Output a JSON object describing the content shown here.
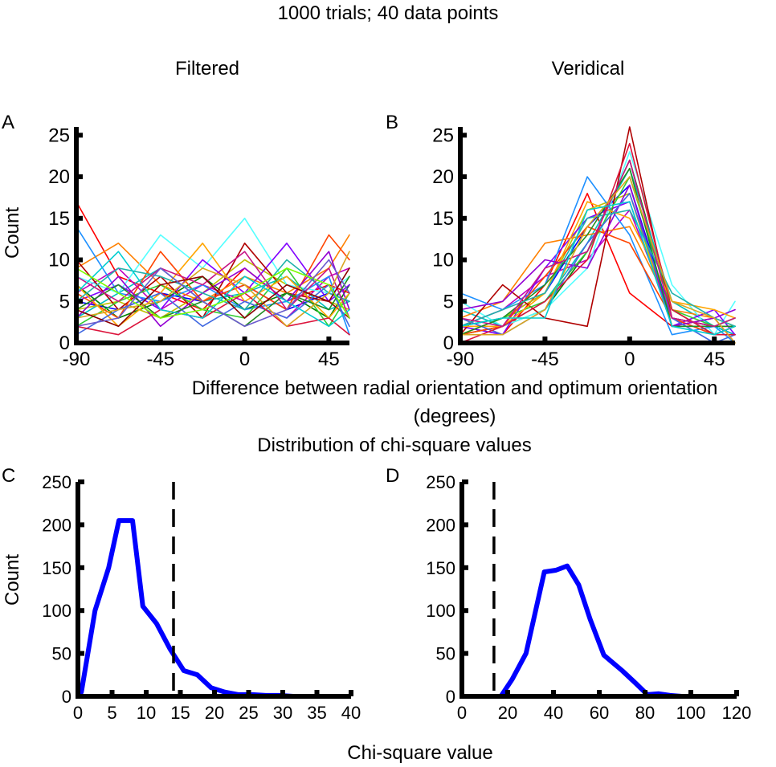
{
  "figure": {
    "main_title": "1000 trials; 40 data points",
    "section_a_xlabel": "Difference between radial orientation and optimum orientation",
    "section_a_xlabel_units": "(degrees)",
    "section_b_title": "Distribution of chi-square values",
    "section_b_xlabel": "Chi-square value"
  },
  "chart_data": [
    {
      "id": "A",
      "type": "line",
      "panel_letter": "A",
      "title": "Filtered",
      "ylabel": "Count",
      "xlabel": "",
      "x": [
        -90,
        -67.5,
        -45,
        -22.5,
        0,
        22.5,
        45,
        56
      ],
      "xticks": [
        -90,
        -45,
        0,
        45
      ],
      "yticks": [
        0,
        5,
        10,
        15,
        20,
        25
      ],
      "xlim": [
        -90,
        56
      ],
      "ylim": [
        0,
        26
      ],
      "grid": false,
      "series": [
        {
          "color": "#0000ff",
          "values": [
            5,
            4,
            6,
            5,
            7,
            4,
            6,
            5
          ]
        },
        {
          "color": "#008000",
          "values": [
            7,
            3,
            5,
            8,
            4,
            6,
            3,
            7
          ]
        },
        {
          "color": "#ff0000",
          "values": [
            17,
            8,
            6,
            4,
            9,
            5,
            7,
            6
          ]
        },
        {
          "color": "#00bfbf",
          "values": [
            3,
            6,
            9,
            5,
            6,
            8,
            4,
            5
          ]
        },
        {
          "color": "#bf00bf",
          "values": [
            6,
            9,
            4,
            7,
            5,
            3,
            8,
            9
          ]
        },
        {
          "color": "#bfbf00",
          "values": [
            4,
            5,
            3,
            6,
            10,
            7,
            5,
            4
          ]
        },
        {
          "color": "#ff8000",
          "values": [
            9,
            12,
            7,
            5,
            8,
            6,
            9,
            13
          ]
        },
        {
          "color": "#55ffff",
          "values": [
            8,
            6,
            13,
            9,
            15,
            7,
            6,
            8
          ]
        },
        {
          "color": "#8000ff",
          "values": [
            5,
            7,
            4,
            10,
            6,
            12,
            5,
            7
          ]
        },
        {
          "color": "#b00000",
          "values": [
            10,
            4,
            8,
            3,
            12,
            6,
            5,
            3
          ]
        },
        {
          "color": "#1e90ff",
          "values": [
            14,
            6,
            5,
            7,
            4,
            5,
            8,
            1
          ]
        },
        {
          "color": "#32cd32",
          "values": [
            2,
            5,
            7,
            4,
            3,
            9,
            2,
            6
          ]
        },
        {
          "color": "#ff4500",
          "values": [
            6,
            3,
            11,
            5,
            7,
            4,
            13,
            10
          ]
        },
        {
          "color": "#9400d3",
          "values": [
            3,
            8,
            2,
            6,
            9,
            5,
            11,
            4
          ]
        },
        {
          "color": "#ffa500",
          "values": [
            7,
            2,
            6,
            12,
            5,
            8,
            3,
            6
          ]
        },
        {
          "color": "#4169e1",
          "values": [
            1,
            4,
            6,
            2,
            5,
            3,
            7,
            2
          ]
        },
        {
          "color": "#228b22",
          "values": [
            4,
            7,
            3,
            5,
            2,
            6,
            4,
            8
          ]
        },
        {
          "color": "#dc143c",
          "values": [
            2,
            1,
            4,
            3,
            6,
            2,
            3,
            1
          ]
        },
        {
          "color": "#20b2aa",
          "values": [
            5,
            9,
            8,
            6,
            4,
            10,
            6,
            5
          ]
        },
        {
          "color": "#c71585",
          "values": [
            8,
            5,
            9,
            7,
            11,
            4,
            9,
            3
          ]
        },
        {
          "color": "#daa520",
          "values": [
            3,
            4,
            5,
            9,
            7,
            2,
            6,
            11
          ]
        },
        {
          "color": "#00ced1",
          "values": [
            6,
            11,
            4,
            3,
            8,
            5,
            2,
            4
          ]
        },
        {
          "color": "#8b0000",
          "values": [
            4,
            2,
            7,
            8,
            3,
            7,
            5,
            9
          ]
        },
        {
          "color": "#7cfc00",
          "values": [
            9,
            6,
            3,
            4,
            6,
            9,
            7,
            3
          ]
        },
        {
          "color": "#6a5acd",
          "values": [
            2,
            3,
            9,
            5,
            2,
            4,
            10,
            6
          ]
        }
      ]
    },
    {
      "id": "B",
      "type": "line",
      "panel_letter": "B",
      "title": "Veridical",
      "ylabel": "",
      "xlabel": "",
      "x": [
        -90,
        -67.5,
        -45,
        -22.5,
        0,
        22.5,
        45,
        56
      ],
      "xticks": [
        -90,
        -45,
        0,
        45
      ],
      "yticks": [
        0,
        5,
        10,
        15,
        20,
        25
      ],
      "xlim": [
        -90,
        56
      ],
      "ylim": [
        0,
        26
      ],
      "grid": false,
      "series": [
        {
          "color": "#0000ff",
          "values": [
            2,
            3,
            6,
            14,
            19,
            3,
            2,
            1
          ]
        },
        {
          "color": "#008000",
          "values": [
            1,
            2,
            4,
            11,
            22,
            4,
            1,
            2
          ]
        },
        {
          "color": "#ff0000",
          "values": [
            3,
            1,
            7,
            18,
            6,
            2,
            3,
            0
          ]
        },
        {
          "color": "#00bfbf",
          "values": [
            4,
            2,
            5,
            12,
            21,
            5,
            2,
            1
          ]
        },
        {
          "color": "#bf00bf",
          "values": [
            2,
            4,
            8,
            10,
            16,
            3,
            1,
            2
          ]
        },
        {
          "color": "#bfbf00",
          "values": [
            1,
            3,
            6,
            16,
            18,
            2,
            2,
            3
          ]
        },
        {
          "color": "#ff8000",
          "values": [
            3,
            5,
            12,
            13,
            14,
            4,
            3,
            2
          ]
        },
        {
          "color": "#55ffff",
          "values": [
            5,
            2,
            4,
            9,
            23,
            7,
            1,
            5
          ]
        },
        {
          "color": "#8000ff",
          "values": [
            2,
            1,
            9,
            15,
            17,
            2,
            4,
            1
          ]
        },
        {
          "color": "#b00000",
          "values": [
            1,
            7,
            3,
            2,
            26,
            3,
            2,
            2
          ]
        },
        {
          "color": "#1e90ff",
          "values": [
            6,
            4,
            7,
            20,
            13,
            1,
            2,
            0
          ]
        },
        {
          "color": "#32cd32",
          "values": [
            2,
            3,
            5,
            11,
            20,
            4,
            2,
            3
          ]
        },
        {
          "color": "#ff4500",
          "values": [
            1,
            2,
            8,
            14,
            12,
            3,
            1,
            2
          ]
        },
        {
          "color": "#9400d3",
          "values": [
            4,
            5,
            10,
            9,
            19,
            2,
            3,
            4
          ]
        },
        {
          "color": "#ffa500",
          "values": [
            2,
            2,
            6,
            17,
            15,
            5,
            4,
            3
          ]
        },
        {
          "color": "#4169e1",
          "values": [
            3,
            1,
            4,
            12,
            18,
            3,
            0,
            1
          ]
        },
        {
          "color": "#228b22",
          "values": [
            1,
            3,
            7,
            13,
            21,
            2,
            2,
            2
          ]
        },
        {
          "color": "#dc143c",
          "values": [
            0,
            2,
            5,
            10,
            24,
            4,
            1,
            1
          ]
        },
        {
          "color": "#20b2aa",
          "values": [
            2,
            4,
            6,
            15,
            16,
            6,
            3,
            2
          ]
        },
        {
          "color": "#c71585",
          "values": [
            3,
            2,
            9,
            11,
            22,
            3,
            2,
            3
          ]
        },
        {
          "color": "#daa520",
          "values": [
            1,
            1,
            4,
            14,
            20,
            5,
            3,
            0
          ]
        },
        {
          "color": "#00ced1",
          "values": [
            2,
            3,
            3,
            16,
            17,
            2,
            1,
            2
          ]
        }
      ]
    },
    {
      "id": "C",
      "type": "line",
      "panel_letter": "C",
      "title": "",
      "ylabel": "Count",
      "xlabel": "",
      "xticks": [
        0,
        5,
        10,
        15,
        20,
        25,
        30,
        35,
        40
      ],
      "yticks": [
        0,
        50,
        100,
        150,
        200,
        250
      ],
      "xlim": [
        0,
        40
      ],
      "ylim": [
        0,
        250
      ],
      "grid": false,
      "dashed_vline_x": 14,
      "series": [
        {
          "color": "#0000ff",
          "x": [
            0.5,
            2.5,
            4.5,
            6,
            8,
            9.5,
            11.5,
            13.5,
            15.5,
            17.5,
            19.5,
            21.5,
            23.5,
            25.5,
            27.5,
            29.5,
            31.5,
            33.5,
            35.5
          ],
          "values": [
            5,
            100,
            150,
            205,
            205,
            105,
            85,
            55,
            30,
            25,
            10,
            5,
            2,
            2,
            1,
            1,
            0,
            0,
            0
          ]
        }
      ]
    },
    {
      "id": "D",
      "type": "line",
      "panel_letter": "D",
      "title": "",
      "ylabel": "",
      "xlabel": "",
      "xticks": [
        0,
        20,
        40,
        60,
        80,
        100,
        120
      ],
      "yticks": [
        0,
        50,
        100,
        150,
        200,
        250
      ],
      "xlim": [
        0,
        120
      ],
      "ylim": [
        0,
        250
      ],
      "grid": false,
      "dashed_vline_x": 14,
      "series": [
        {
          "color": "#0000ff",
          "x": [
            17,
            22,
            28,
            36,
            41,
            46,
            51,
            56,
            62,
            70,
            76,
            81,
            86,
            91,
            96,
            101,
            106,
            111
          ],
          "values": [
            0,
            20,
            50,
            145,
            147,
            152,
            130,
            90,
            48,
            30,
            15,
            2,
            3,
            1,
            0,
            0,
            0,
            0
          ]
        }
      ]
    }
  ]
}
